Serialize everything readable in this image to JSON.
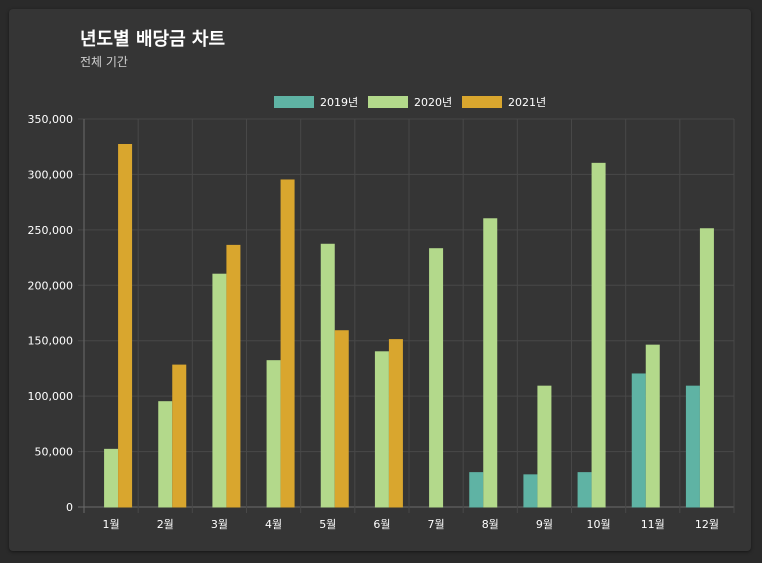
{
  "header": {
    "title": "년도별 배당금 차트",
    "subtitle": "전체 기간"
  },
  "colors": {
    "2019년": "#5fb3a4",
    "2020년": "#b3d98b",
    "2021년": "#d9a62e"
  },
  "chart_data": {
    "type": "bar",
    "categories": [
      "1월",
      "2월",
      "3월",
      "4월",
      "5월",
      "6월",
      "7월",
      "8월",
      "9월",
      "10월",
      "11월",
      "12월"
    ],
    "series": [
      {
        "name": "2019년",
        "values": [
          0,
          0,
          0,
          0,
          0,
          0,
          0,
          31000,
          29000,
          31000,
          120000,
          109000
        ]
      },
      {
        "name": "2020년",
        "values": [
          52000,
          95000,
          210000,
          132000,
          237000,
          140000,
          233000,
          260000,
          109000,
          310000,
          146000,
          251000
        ]
      },
      {
        "name": "2021년",
        "values": [
          327000,
          128000,
          236000,
          295000,
          159000,
          151000,
          0,
          0,
          0,
          0,
          0,
          0
        ]
      }
    ],
    "ylim": [
      0,
      350000
    ],
    "yticks": [
      "0",
      "50,000",
      "100,000",
      "150,000",
      "200,000",
      "250,000",
      "300,000",
      "350,000"
    ],
    "grid": true,
    "legend_position": "top-center"
  }
}
